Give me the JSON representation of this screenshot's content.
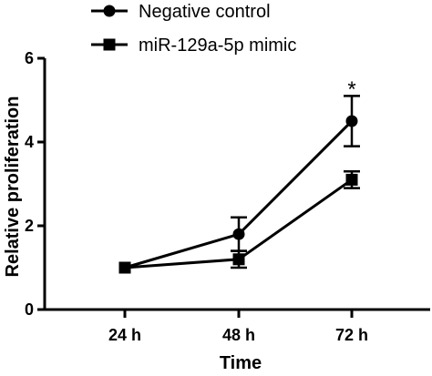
{
  "chart_data": {
    "type": "line",
    "title": "",
    "xlabel": "Time",
    "ylabel": "Relative proliferation",
    "categories": [
      "24 h",
      "48 h",
      "72 h"
    ],
    "ylim": [
      0,
      6
    ],
    "yticks": [
      0,
      2,
      4,
      6
    ],
    "grid": false,
    "legend": "top",
    "series": [
      {
        "name": "Negative control",
        "marker": "circle",
        "values": [
          1.0,
          1.8,
          4.5
        ],
        "error": [
          0.05,
          0.4,
          0.6
        ]
      },
      {
        "name": "miR-129a-5p mimic",
        "marker": "square",
        "values": [
          1.0,
          1.2,
          3.1
        ],
        "error": [
          0.05,
          0.2,
          0.2
        ]
      }
    ],
    "annotations": [
      {
        "text": "*",
        "category": "72 h",
        "y": 5.35
      }
    ]
  }
}
